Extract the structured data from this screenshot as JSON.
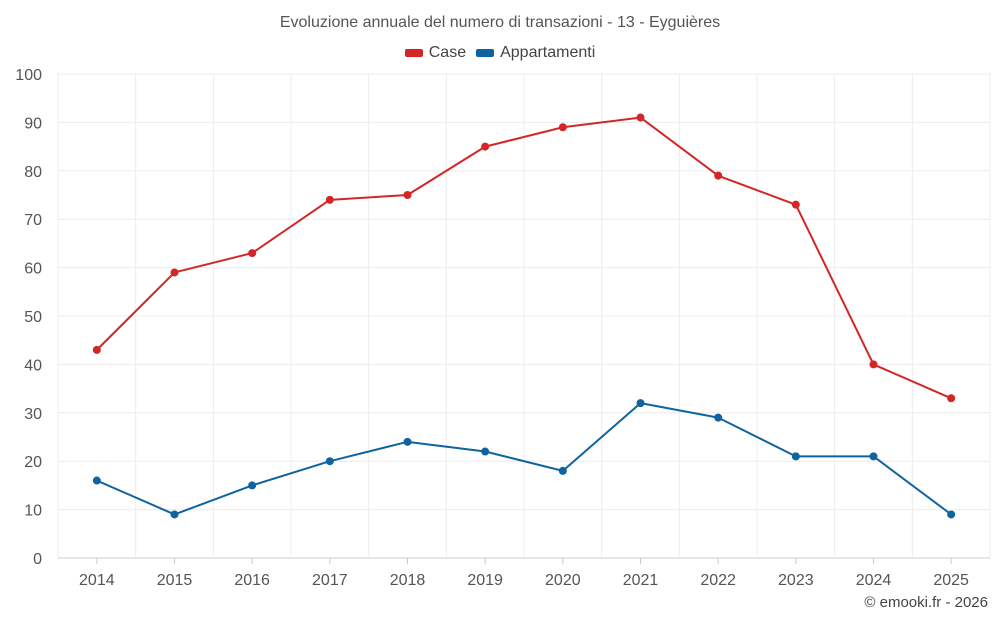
{
  "chart_data": {
    "type": "line",
    "title": "Evoluzione annuale del numero di transazioni - 13 - Eyguières",
    "categories": [
      "2014",
      "2015",
      "2016",
      "2017",
      "2018",
      "2019",
      "2020",
      "2021",
      "2022",
      "2023",
      "2024",
      "2025"
    ],
    "series": [
      {
        "name": "Case",
        "color": "#d32626",
        "values": [
          43,
          59,
          63,
          74,
          75,
          85,
          89,
          91,
          79,
          73,
          40,
          33
        ]
      },
      {
        "name": "Appartamenti",
        "color": "#0f64a0",
        "values": [
          16,
          9,
          15,
          20,
          24,
          22,
          18,
          32,
          29,
          21,
          21,
          9
        ]
      }
    ],
    "ylim": [
      0,
      100
    ],
    "yticks": [
      0,
      10,
      20,
      30,
      40,
      50,
      60,
      70,
      80,
      90,
      100
    ],
    "xlabel": "",
    "ylabel": "",
    "grid": true,
    "legend_position": "top-center"
  },
  "credit": "© emooki.fr - 2026"
}
